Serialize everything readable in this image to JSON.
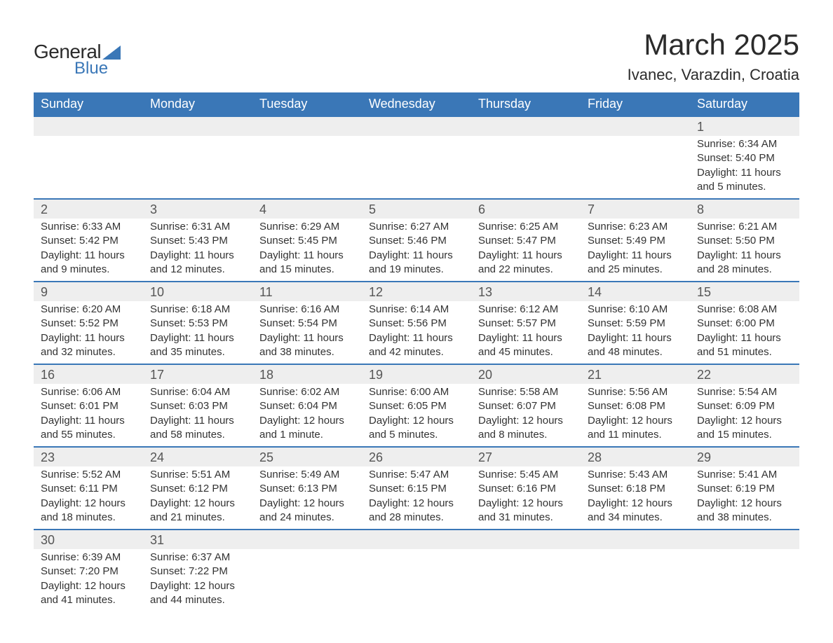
{
  "logo": {
    "text1": "General",
    "text2": "Blue"
  },
  "title": "March 2025",
  "location": "Ivanec, Varazdin, Croatia",
  "colors": {
    "header_bg": "#3a77b7",
    "header_text": "#ffffff",
    "daynum_bg": "#eeeeee",
    "row_border": "#3a77b7",
    "body_text": "#333333"
  },
  "weekdays": [
    "Sunday",
    "Monday",
    "Tuesday",
    "Wednesday",
    "Thursday",
    "Friday",
    "Saturday"
  ],
  "weeks": [
    [
      null,
      null,
      null,
      null,
      null,
      null,
      {
        "n": "1",
        "sr": "6:34 AM",
        "ss": "5:40 PM",
        "dl": "11 hours and 5 minutes."
      }
    ],
    [
      {
        "n": "2",
        "sr": "6:33 AM",
        "ss": "5:42 PM",
        "dl": "11 hours and 9 minutes."
      },
      {
        "n": "3",
        "sr": "6:31 AM",
        "ss": "5:43 PM",
        "dl": "11 hours and 12 minutes."
      },
      {
        "n": "4",
        "sr": "6:29 AM",
        "ss": "5:45 PM",
        "dl": "11 hours and 15 minutes."
      },
      {
        "n": "5",
        "sr": "6:27 AM",
        "ss": "5:46 PM",
        "dl": "11 hours and 19 minutes."
      },
      {
        "n": "6",
        "sr": "6:25 AM",
        "ss": "5:47 PM",
        "dl": "11 hours and 22 minutes."
      },
      {
        "n": "7",
        "sr": "6:23 AM",
        "ss": "5:49 PM",
        "dl": "11 hours and 25 minutes."
      },
      {
        "n": "8",
        "sr": "6:21 AM",
        "ss": "5:50 PM",
        "dl": "11 hours and 28 minutes."
      }
    ],
    [
      {
        "n": "9",
        "sr": "6:20 AM",
        "ss": "5:52 PM",
        "dl": "11 hours and 32 minutes."
      },
      {
        "n": "10",
        "sr": "6:18 AM",
        "ss": "5:53 PM",
        "dl": "11 hours and 35 minutes."
      },
      {
        "n": "11",
        "sr": "6:16 AM",
        "ss": "5:54 PM",
        "dl": "11 hours and 38 minutes."
      },
      {
        "n": "12",
        "sr": "6:14 AM",
        "ss": "5:56 PM",
        "dl": "11 hours and 42 minutes."
      },
      {
        "n": "13",
        "sr": "6:12 AM",
        "ss": "5:57 PM",
        "dl": "11 hours and 45 minutes."
      },
      {
        "n": "14",
        "sr": "6:10 AM",
        "ss": "5:59 PM",
        "dl": "11 hours and 48 minutes."
      },
      {
        "n": "15",
        "sr": "6:08 AM",
        "ss": "6:00 PM",
        "dl": "11 hours and 51 minutes."
      }
    ],
    [
      {
        "n": "16",
        "sr": "6:06 AM",
        "ss": "6:01 PM",
        "dl": "11 hours and 55 minutes."
      },
      {
        "n": "17",
        "sr": "6:04 AM",
        "ss": "6:03 PM",
        "dl": "11 hours and 58 minutes."
      },
      {
        "n": "18",
        "sr": "6:02 AM",
        "ss": "6:04 PM",
        "dl": "12 hours and 1 minute."
      },
      {
        "n": "19",
        "sr": "6:00 AM",
        "ss": "6:05 PM",
        "dl": "12 hours and 5 minutes."
      },
      {
        "n": "20",
        "sr": "5:58 AM",
        "ss": "6:07 PM",
        "dl": "12 hours and 8 minutes."
      },
      {
        "n": "21",
        "sr": "5:56 AM",
        "ss": "6:08 PM",
        "dl": "12 hours and 11 minutes."
      },
      {
        "n": "22",
        "sr": "5:54 AM",
        "ss": "6:09 PM",
        "dl": "12 hours and 15 minutes."
      }
    ],
    [
      {
        "n": "23",
        "sr": "5:52 AM",
        "ss": "6:11 PM",
        "dl": "12 hours and 18 minutes."
      },
      {
        "n": "24",
        "sr": "5:51 AM",
        "ss": "6:12 PM",
        "dl": "12 hours and 21 minutes."
      },
      {
        "n": "25",
        "sr": "5:49 AM",
        "ss": "6:13 PM",
        "dl": "12 hours and 24 minutes."
      },
      {
        "n": "26",
        "sr": "5:47 AM",
        "ss": "6:15 PM",
        "dl": "12 hours and 28 minutes."
      },
      {
        "n": "27",
        "sr": "5:45 AM",
        "ss": "6:16 PM",
        "dl": "12 hours and 31 minutes."
      },
      {
        "n": "28",
        "sr": "5:43 AM",
        "ss": "6:18 PM",
        "dl": "12 hours and 34 minutes."
      },
      {
        "n": "29",
        "sr": "5:41 AM",
        "ss": "6:19 PM",
        "dl": "12 hours and 38 minutes."
      }
    ],
    [
      {
        "n": "30",
        "sr": "6:39 AM",
        "ss": "7:20 PM",
        "dl": "12 hours and 41 minutes."
      },
      {
        "n": "31",
        "sr": "6:37 AM",
        "ss": "7:22 PM",
        "dl": "12 hours and 44 minutes."
      },
      null,
      null,
      null,
      null,
      null
    ]
  ],
  "labels": {
    "sunrise": "Sunrise: ",
    "sunset": "Sunset: ",
    "daylight": "Daylight: "
  }
}
